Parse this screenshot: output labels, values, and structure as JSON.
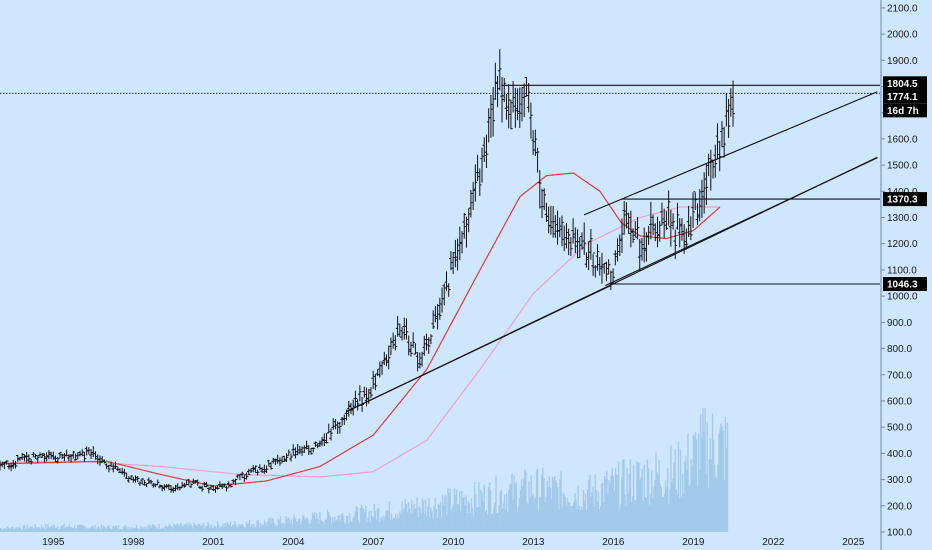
{
  "chart_data": {
    "type": "ohlc",
    "title": "",
    "xlabel": "",
    "ylabel": "",
    "ylim": [
      100,
      2130
    ],
    "xlim": [
      1993.0,
      2026.0
    ],
    "scale": "linear",
    "grid": false,
    "background": "#cfe6ff",
    "x_ticks": [
      {
        "value": 1995,
        "label": "1995"
      },
      {
        "value": 1998,
        "label": "1998"
      },
      {
        "value": 2001,
        "label": "2001"
      },
      {
        "value": 2004,
        "label": "2004"
      },
      {
        "value": 2007,
        "label": "2007"
      },
      {
        "value": 2010,
        "label": "2010"
      },
      {
        "value": 2013,
        "label": "2013"
      },
      {
        "value": 2016,
        "label": "2016"
      },
      {
        "value": 2019,
        "label": "2019"
      },
      {
        "value": 2022,
        "label": "2022"
      },
      {
        "value": 2025,
        "label": "2025"
      }
    ],
    "y_ticks": [
      {
        "value": 100,
        "label": "100.0"
      },
      {
        "value": 200,
        "label": "200.0"
      },
      {
        "value": 300,
        "label": "300.0"
      },
      {
        "value": 400,
        "label": "400.0"
      },
      {
        "value": 500,
        "label": "500.0"
      },
      {
        "value": 600,
        "label": "600.0"
      },
      {
        "value": 700,
        "label": "700.0"
      },
      {
        "value": 800,
        "label": "800.0"
      },
      {
        "value": 900,
        "label": "900.0"
      },
      {
        "value": 1000,
        "label": "1000.0"
      },
      {
        "value": 1100,
        "label": "1100.0"
      },
      {
        "value": 1200,
        "label": "1200.0"
      },
      {
        "value": 1300,
        "label": "1300.0"
      },
      {
        "value": 1400,
        "label": "1400.0"
      },
      {
        "value": 1500,
        "label": "1500.0"
      },
      {
        "value": 1600,
        "label": "1600.0"
      },
      {
        "value": 1700,
        "label": "1700.0"
      },
      {
        "value": 1800,
        "label": "1800.0"
      },
      {
        "value": 1900,
        "label": "1900.0"
      },
      {
        "value": 2000,
        "label": "2000.0"
      },
      {
        "value": 2100,
        "label": "2100.0"
      }
    ],
    "price_series": {
      "name": "",
      "color": "#111111",
      "points": [
        [
          1993.0,
          345
        ],
        [
          1994.0,
          385
        ],
        [
          1995.0,
          385
        ],
        [
          1996.0,
          390
        ],
        [
          1996.5,
          410
        ],
        [
          1997.0,
          360
        ],
        [
          1997.5,
          330
        ],
        [
          1998.0,
          295
        ],
        [
          1999.0,
          275
        ],
        [
          1999.6,
          265
        ],
        [
          2000.0,
          290
        ],
        [
          2001.0,
          265
        ],
        [
          2001.5,
          275
        ],
        [
          2002.0,
          310
        ],
        [
          2003.0,
          350
        ],
        [
          2004.0,
          400
        ],
        [
          2005.0,
          430
        ],
        [
          2006.0,
          550
        ],
        [
          2007.0,
          660
        ],
        [
          2008.0,
          880
        ],
        [
          2008.8,
          760
        ],
        [
          2009.5,
          950
        ],
        [
          2010.0,
          1120
        ],
        [
          2011.0,
          1450
        ],
        [
          2011.7,
          1820
        ],
        [
          2012.0,
          1700
        ],
        [
          2012.8,
          1750
        ],
        [
          2013.5,
          1280
        ],
        [
          2014.0,
          1250
        ],
        [
          2015.0,
          1180
        ],
        [
          2015.9,
          1060
        ],
        [
          2016.5,
          1330
        ],
        [
          2017.0,
          1200
        ],
        [
          2018.0,
          1310
        ],
        [
          2018.7,
          1190
        ],
        [
          2019.0,
          1300
        ],
        [
          2019.6,
          1500
        ],
        [
          2020.0,
          1560
        ],
        [
          2020.5,
          1780
        ]
      ]
    },
    "volume_series": {
      "name": "",
      "color": "#9ec5e8",
      "points": [
        [
          1993.0,
          120
        ],
        [
          1995.0,
          130
        ],
        [
          1997.0,
          125
        ],
        [
          1999.0,
          130
        ],
        [
          2001.0,
          135
        ],
        [
          2003.0,
          150
        ],
        [
          2005.0,
          175
        ],
        [
          2007.0,
          200
        ],
        [
          2009.0,
          240
        ],
        [
          2011.0,
          280
        ],
        [
          2013.0,
          330
        ],
        [
          2015.0,
          300
        ],
        [
          2017.0,
          380
        ],
        [
          2018.5,
          420
        ],
        [
          2019.5,
          560
        ],
        [
          2020.3,
          540
        ]
      ]
    },
    "ma_fast": {
      "name": "",
      "color": "#e03a3a",
      "points": [
        [
          1993.0,
          360
        ],
        [
          1995.0,
          365
        ],
        [
          1997.0,
          370
        ],
        [
          1999.0,
          320
        ],
        [
          2001.0,
          275
        ],
        [
          2003.0,
          295
        ],
        [
          2005.0,
          350
        ],
        [
          2007.0,
          470
        ],
        [
          2009.0,
          720
        ],
        [
          2011.0,
          1100
        ],
        [
          2012.5,
          1380
        ],
        [
          2013.5,
          1460
        ],
        [
          2014.5,
          1470
        ],
        [
          2015.5,
          1400
        ],
        [
          2016.3,
          1280
        ],
        [
          2017.0,
          1230
        ],
        [
          2018.0,
          1220
        ],
        [
          2019.0,
          1250
        ],
        [
          2020.0,
          1340
        ]
      ]
    },
    "ma_slow": {
      "name": "",
      "color": "#f0a0c8",
      "points": [
        [
          1993.0,
          365
        ],
        [
          1996.0,
          370
        ],
        [
          1999.0,
          350
        ],
        [
          2002.0,
          320
        ],
        [
          2005.0,
          310
        ],
        [
          2007.0,
          330
        ],
        [
          2009.0,
          450
        ],
        [
          2011.0,
          720
        ],
        [
          2013.0,
          1010
        ],
        [
          2015.0,
          1200
        ],
        [
          2017.0,
          1300
        ],
        [
          2018.5,
          1340
        ],
        [
          2020.0,
          1340
        ]
      ]
    },
    "trend_lines": [
      {
        "x1": 2006.0,
        "y1": 560,
        "x2": 2025.9,
        "y2": 1530
      },
      {
        "x1": 2015.7,
        "y1": 1040,
        "x2": 2025.9,
        "y2": 1528
      }
    ],
    "channel_lines": [
      {
        "x1": 2014.9,
        "y1": 1310,
        "x2": 2025.9,
        "y2": 1780
      },
      {
        "x1": 2006.0,
        "y1": 560,
        "x2": 2015.9,
        "y2": 1040
      }
    ],
    "horizontal_levels": [
      {
        "value": 1804.5,
        "label": "1804.5",
        "x_start": 2011.8,
        "style": "solid"
      },
      {
        "value": 1774.1,
        "label": "1774.1",
        "x_start": 1993.0,
        "style": "dotted"
      },
      {
        "value": 1370.3,
        "label": "1370.3",
        "x_start": 2016.3,
        "style": "solid"
      },
      {
        "value": 1046.3,
        "label": "1046.3",
        "x_start": 2015.9,
        "style": "solid"
      }
    ],
    "countdown_label": "16d 7h"
  }
}
